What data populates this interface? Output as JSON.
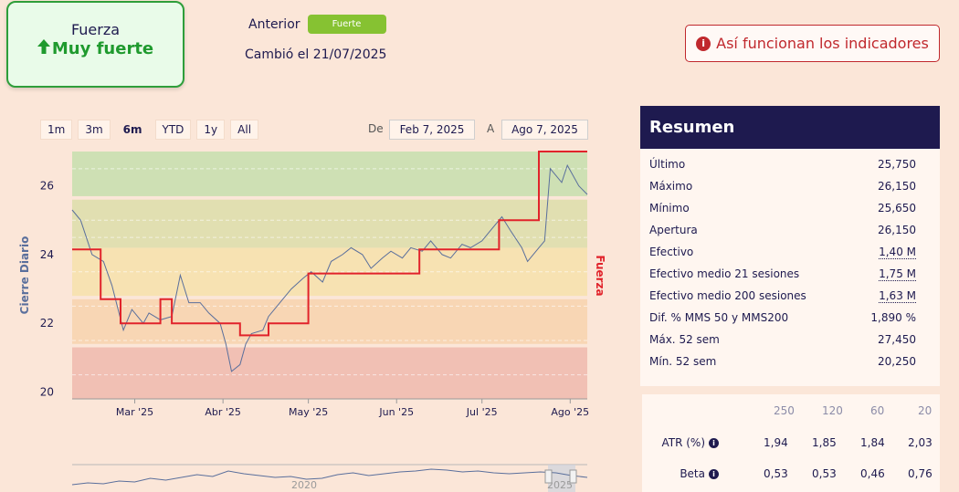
{
  "strength": {
    "title": "Fuerza",
    "value": "Muy fuerte",
    "icon": "arrow-up-icon",
    "color": "#1f9a2e"
  },
  "previous": {
    "label": "Anterior",
    "badge": "Fuerte",
    "badge_color": "#86c232"
  },
  "changed_text": "Cambió el 21/07/2025",
  "info_button": {
    "label": "Así funcionan los indicadores",
    "icon": "info-icon",
    "color": "#c0282d"
  },
  "ranges": [
    "1m",
    "3m",
    "6m",
    "YTD",
    "1y",
    "All"
  ],
  "active_range": "6m",
  "date_from_label": "De",
  "date_from": "Feb 7, 2025",
  "date_to_label": "A",
  "date_to": "Ago 7, 2025",
  "chart_data": {
    "type": "line",
    "ylabel": "Cierre Diario",
    "y2label": "Fuerza",
    "ylim": [
      19.8,
      27
    ],
    "yticks": [
      "20",
      "22",
      "24",
      "26"
    ],
    "xticks": [
      "Mar '25",
      "Abr '25",
      "May '25",
      "Jun '25",
      "Jul '25",
      "Ago '25"
    ],
    "bands": [
      {
        "from": 19.8,
        "to": 21.3,
        "color": "#f1c0b4"
      },
      {
        "from": 21.4,
        "to": 22.7,
        "color": "#f8d6b4"
      },
      {
        "from": 22.8,
        "to": 24.2,
        "color": "#f7e2b2"
      },
      {
        "from": 24.2,
        "to": 25.6,
        "color": "#e1dfb1"
      },
      {
        "from": 25.7,
        "to": 27.0,
        "color": "#cee0b4"
      }
    ],
    "series": [
      {
        "name": "Cierre Diario",
        "color": "#5a6f9c",
        "x": [
          "2025-02-07",
          "2025-02-10",
          "2025-02-14",
          "2025-02-18",
          "2025-02-21",
          "2025-02-25",
          "2025-02-28",
          "2025-03-04",
          "2025-03-06",
          "2025-03-10",
          "2025-03-14",
          "2025-03-17",
          "2025-03-20",
          "2025-03-24",
          "2025-03-27",
          "2025-03-31",
          "2025-04-02",
          "2025-04-04",
          "2025-04-07",
          "2025-04-09",
          "2025-04-11",
          "2025-04-15",
          "2025-04-17",
          "2025-04-22",
          "2025-04-25",
          "2025-04-29",
          "2025-05-02",
          "2025-05-06",
          "2025-05-09",
          "2025-05-13",
          "2025-05-16",
          "2025-05-20",
          "2025-05-23",
          "2025-05-27",
          "2025-05-30",
          "2025-06-03",
          "2025-06-06",
          "2025-06-10",
          "2025-06-13",
          "2025-06-17",
          "2025-06-20",
          "2025-06-24",
          "2025-06-27",
          "2025-07-01",
          "2025-07-03",
          "2025-07-08",
          "2025-07-11",
          "2025-07-15",
          "2025-07-17",
          "2025-07-21",
          "2025-07-23",
          "2025-07-25",
          "2025-07-29",
          "2025-07-31",
          "2025-08-04",
          "2025-08-07"
        ],
        "values": [
          25.3,
          25.0,
          24.0,
          23.8,
          23.1,
          21.8,
          22.4,
          22.0,
          22.3,
          22.1,
          22.2,
          23.4,
          22.6,
          22.6,
          22.3,
          22.0,
          21.4,
          20.6,
          20.8,
          21.4,
          21.7,
          21.8,
          22.2,
          22.7,
          23.0,
          23.3,
          23.5,
          23.2,
          23.8,
          24.0,
          24.2,
          24.0,
          23.6,
          23.9,
          24.1,
          23.9,
          24.2,
          24.1,
          24.4,
          24.0,
          23.9,
          24.3,
          24.2,
          24.4,
          24.6,
          25.1,
          24.7,
          24.2,
          23.8,
          24.2,
          24.4,
          26.5,
          26.1,
          26.6,
          26.0,
          25.75
        ]
      },
      {
        "name": "Fuerza",
        "color": "#e1232b",
        "x": [
          "2025-02-07",
          "2025-02-17",
          "2025-02-17",
          "2025-02-24",
          "2025-02-24",
          "2025-03-10",
          "2025-03-10",
          "2025-03-14",
          "2025-03-14",
          "2025-04-07",
          "2025-04-07",
          "2025-04-17",
          "2025-04-17",
          "2025-05-01",
          "2025-05-01",
          "2025-06-09",
          "2025-06-09",
          "2025-07-07",
          "2025-07-07",
          "2025-07-21",
          "2025-07-21",
          "2025-07-28",
          "2025-07-28",
          "2025-08-07"
        ],
        "values": [
          24.15,
          24.15,
          22.7,
          22.7,
          22.0,
          22.0,
          22.7,
          22.7,
          22.0,
          22.0,
          21.65,
          21.65,
          22.0,
          22.0,
          23.45,
          23.45,
          24.15,
          24.15,
          25.0,
          25.0,
          27.0,
          27.0,
          27.0,
          27.0
        ]
      }
    ],
    "navigator_labels": [
      "2020",
      "2025"
    ]
  },
  "summary": {
    "title": "Resumen",
    "rows": [
      {
        "label": "Último",
        "value": "25,750"
      },
      {
        "label": "Máximo",
        "value": "26,150"
      },
      {
        "label": "Mínimo",
        "value": "25,650"
      },
      {
        "label": "Apertura",
        "value": "26,150"
      },
      {
        "label": "Efectivo",
        "value": "1,40 M"
      },
      {
        "label": "Efectivo medio 21 sesiones",
        "value": "1,75 M"
      },
      {
        "label": "Efectivo medio 200 sesiones",
        "value": "1,63 M"
      },
      {
        "label": "Dif. % MMS 50 y MMS200",
        "value": "1,890 %"
      },
      {
        "label": "Máx. 52 sem",
        "value": "27,450"
      },
      {
        "label": "Mín. 52 sem",
        "value": "20,250"
      }
    ]
  },
  "indicators": {
    "periods": [
      "250",
      "120",
      "60",
      "20"
    ],
    "rows": [
      {
        "label": "ATR (%)",
        "values": [
          "1,94",
          "1,85",
          "1,84",
          "2,03"
        ]
      },
      {
        "label": "Beta",
        "values": [
          "0,53",
          "0,53",
          "0,46",
          "0,76"
        ]
      }
    ]
  }
}
